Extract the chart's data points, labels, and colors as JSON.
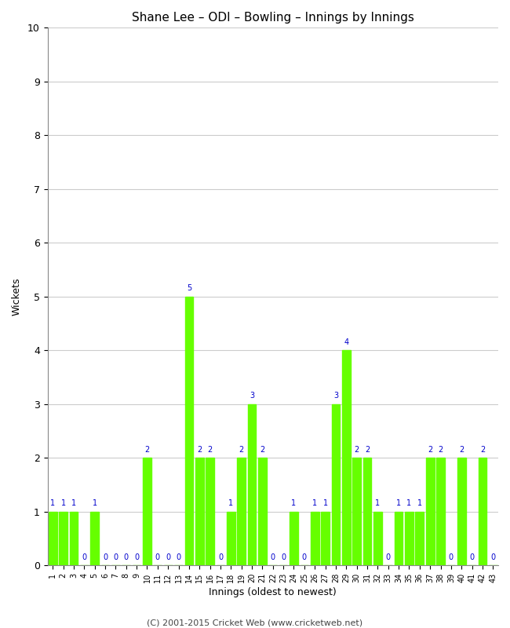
{
  "title": "Shane Lee – ODI – Bowling – Innings by Innings",
  "xlabel": "Innings (oldest to newest)",
  "ylabel": "Wickets",
  "ylim": [
    0,
    10
  ],
  "yticks": [
    0,
    1,
    2,
    3,
    4,
    5,
    6,
    7,
    8,
    9,
    10
  ],
  "bar_color": "#66ff00",
  "label_color": "#0000cc",
  "background_color": "#ffffff",
  "footer": "(C) 2001-2015 Cricket Web (www.cricketweb.net)",
  "innings": [
    1,
    2,
    3,
    4,
    5,
    6,
    7,
    8,
    9,
    10,
    11,
    12,
    13,
    14,
    15,
    16,
    17,
    18,
    19,
    20,
    21,
    22,
    23,
    24,
    25,
    26,
    27,
    28,
    29,
    30,
    31,
    32,
    33,
    34,
    35,
    36,
    37,
    38,
    39,
    40,
    41,
    42,
    43
  ],
  "wickets": [
    1,
    1,
    1,
    0,
    1,
    0,
    0,
    0,
    0,
    2,
    0,
    0,
    0,
    5,
    2,
    2,
    0,
    1,
    2,
    3,
    2,
    0,
    0,
    1,
    0,
    1,
    1,
    3,
    4,
    2,
    2,
    1,
    0,
    1,
    1,
    1,
    2,
    2,
    0,
    2,
    0,
    2,
    0
  ]
}
